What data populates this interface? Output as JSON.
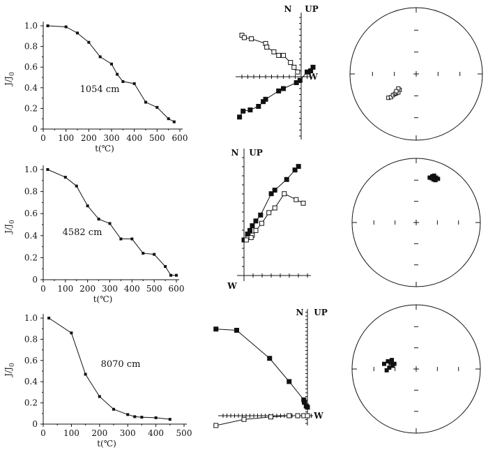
{
  "chart_data": [
    {
      "type": "line",
      "panel": "demagnetization",
      "annotation": "1054 cm",
      "xlabel": "t(℃)",
      "ylabel": "J/J0",
      "xlim": [
        0,
        600
      ],
      "ylim": [
        0,
        1.0
      ],
      "xticks": [
        "0",
        "100",
        "200",
        "300",
        "400",
        "500",
        "600"
      ],
      "yticks": [
        "0",
        "0.2",
        "0.4",
        "0.6",
        "0.8",
        "1.0"
      ],
      "x": [
        20,
        100,
        150,
        200,
        250,
        300,
        325,
        350,
        400,
        450,
        500,
        550,
        575
      ],
      "y": [
        1.0,
        0.99,
        0.93,
        0.84,
        0.7,
        0.63,
        0.53,
        0.46,
        0.44,
        0.26,
        0.21,
        0.1,
        0.07
      ]
    },
    {
      "type": "line",
      "panel": "demagnetization",
      "annotation": "4582 cm",
      "xlabel": "t(℃)",
      "ylabel": "J/J0",
      "xlim": [
        0,
        600
      ],
      "ylim": [
        0,
        1.0
      ],
      "xticks": [
        "0",
        "100",
        "200",
        "300",
        "400",
        "500",
        "600"
      ],
      "yticks": [
        "0",
        "0.2",
        "0.4",
        "0.6",
        "0.8",
        "1.0"
      ],
      "x": [
        20,
        100,
        150,
        200,
        250,
        300,
        350,
        400,
        450,
        500,
        550,
        575,
        600
      ],
      "y": [
        1.0,
        0.93,
        0.85,
        0.67,
        0.55,
        0.51,
        0.37,
        0.37,
        0.24,
        0.23,
        0.12,
        0.04,
        0.04
      ]
    },
    {
      "type": "line",
      "panel": "demagnetization",
      "annotation": "8070 cm",
      "xlabel": "t(℃)",
      "ylabel": "J/J0",
      "xlim": [
        0,
        500
      ],
      "ylim": [
        0,
        1.0
      ],
      "xticks": [
        "0",
        "100",
        "200",
        "300",
        "400",
        "500"
      ],
      "yticks": [
        "0",
        "0.2",
        "0.4",
        "0.6",
        "0.8",
        "1.0"
      ],
      "x": [
        20,
        100,
        150,
        200,
        250,
        300,
        325,
        350,
        400,
        450
      ],
      "y": [
        1.0,
        0.86,
        0.47,
        0.26,
        0.14,
        0.09,
        0.07,
        0.065,
        0.06,
        0.045
      ]
    },
    {
      "type": "scatter",
      "panel": "zijderveld",
      "axis_labels": [
        "N",
        "UP",
        "W"
      ],
      "series": [
        {
          "fill": "filled",
          "x": [
            -5.2,
            -4.9,
            -4.3,
            -3.6,
            -3.2,
            -3.0,
            -1.9,
            -1.5,
            -0.4,
            -0.1,
            0.5,
            0.8,
            1.0
          ],
          "y": [
            -3.4,
            -2.9,
            -2.8,
            -2.5,
            -2.1,
            -1.9,
            -1.2,
            -1.0,
            -0.5,
            -0.3,
            0.4,
            0.5,
            0.8
          ]
        },
        {
          "fill": "open",
          "x": [
            -5.0,
            -4.8,
            -4.2,
            -3.0,
            -2.9,
            -2.3,
            -1.9,
            -1.5,
            -0.9,
            -0.6,
            -0.3
          ],
          "y": [
            3.5,
            3.3,
            3.2,
            2.8,
            2.5,
            2.1,
            1.8,
            1.8,
            1.2,
            0.8,
            0.4
          ]
        }
      ]
    },
    {
      "type": "scatter",
      "panel": "zijderveld",
      "axis_labels": [
        "N",
        "UP",
        "W"
      ],
      "series": [
        {
          "fill": "filled",
          "x": [
            4.6,
            4.3,
            3.6,
            2.6,
            2.3,
            1.4,
            1.0,
            0.7,
            0.5,
            0.3,
            0.0
          ],
          "y": [
            9.2,
            8.9,
            8.1,
            7.2,
            6.9,
            5.1,
            4.6,
            4.2,
            3.8,
            3.5,
            3.0
          ]
        },
        {
          "fill": "open",
          "x": [
            5.0,
            4.4,
            3.4,
            2.6,
            2.1,
            1.5,
            1.0,
            0.7,
            0.6,
            0.2
          ],
          "y": [
            6.1,
            6.4,
            6.9,
            5.7,
            5.3,
            4.4,
            3.8,
            3.4,
            3.2,
            3.0
          ]
        }
      ]
    },
    {
      "type": "scatter",
      "panel": "zijderveld",
      "axis_labels": [
        "N",
        "UP",
        "W"
      ],
      "series": [
        {
          "fill": "filled",
          "x": [
            -7.5,
            -5.8,
            -3.1,
            -1.5,
            -0.3,
            -0.25,
            -0.1,
            0.0
          ],
          "y": [
            7.1,
            7.0,
            4.7,
            2.8,
            1.3,
            1.1,
            0.8,
            0.7
          ]
        },
        {
          "fill": "open",
          "x": [
            -7.5,
            -5.2,
            -3.0,
            -1.5,
            -0.8,
            -0.3,
            0.0
          ],
          "y": [
            -0.8,
            -0.3,
            -0.1,
            0.0,
            0.0,
            0.0,
            0.0
          ]
        }
      ]
    },
    {
      "type": "scatter",
      "panel": "stereonet",
      "series": [
        {
          "fill": "open",
          "x": [
            -0.42,
            -0.38,
            -0.35,
            -0.32,
            -0.3,
            -0.27,
            -0.25,
            -0.27,
            -0.3
          ],
          "y": [
            -0.36,
            -0.35,
            -0.32,
            -0.3,
            -0.29,
            -0.28,
            -0.24,
            -0.22,
            -0.26
          ]
        }
      ]
    },
    {
      "type": "scatter",
      "panel": "stereonet",
      "series": [
        {
          "fill": "filled",
          "x": [
            0.21,
            0.25,
            0.28,
            0.31,
            0.34,
            0.3,
            0.27,
            0.24
          ],
          "y": [
            0.7,
            0.72,
            0.73,
            0.7,
            0.68,
            0.66,
            0.67,
            0.69
          ]
        }
      ]
    },
    {
      "type": "scatter",
      "panel": "stereonet",
      "series": [
        {
          "fill": "filled",
          "x": [
            -0.5,
            -0.44,
            -0.38,
            -0.34,
            -0.37,
            -0.42,
            -0.46,
            -0.4
          ],
          "y": [
            0.08,
            0.12,
            0.14,
            0.08,
            0.05,
            0.02,
            -0.02,
            0.1
          ]
        }
      ]
    }
  ]
}
